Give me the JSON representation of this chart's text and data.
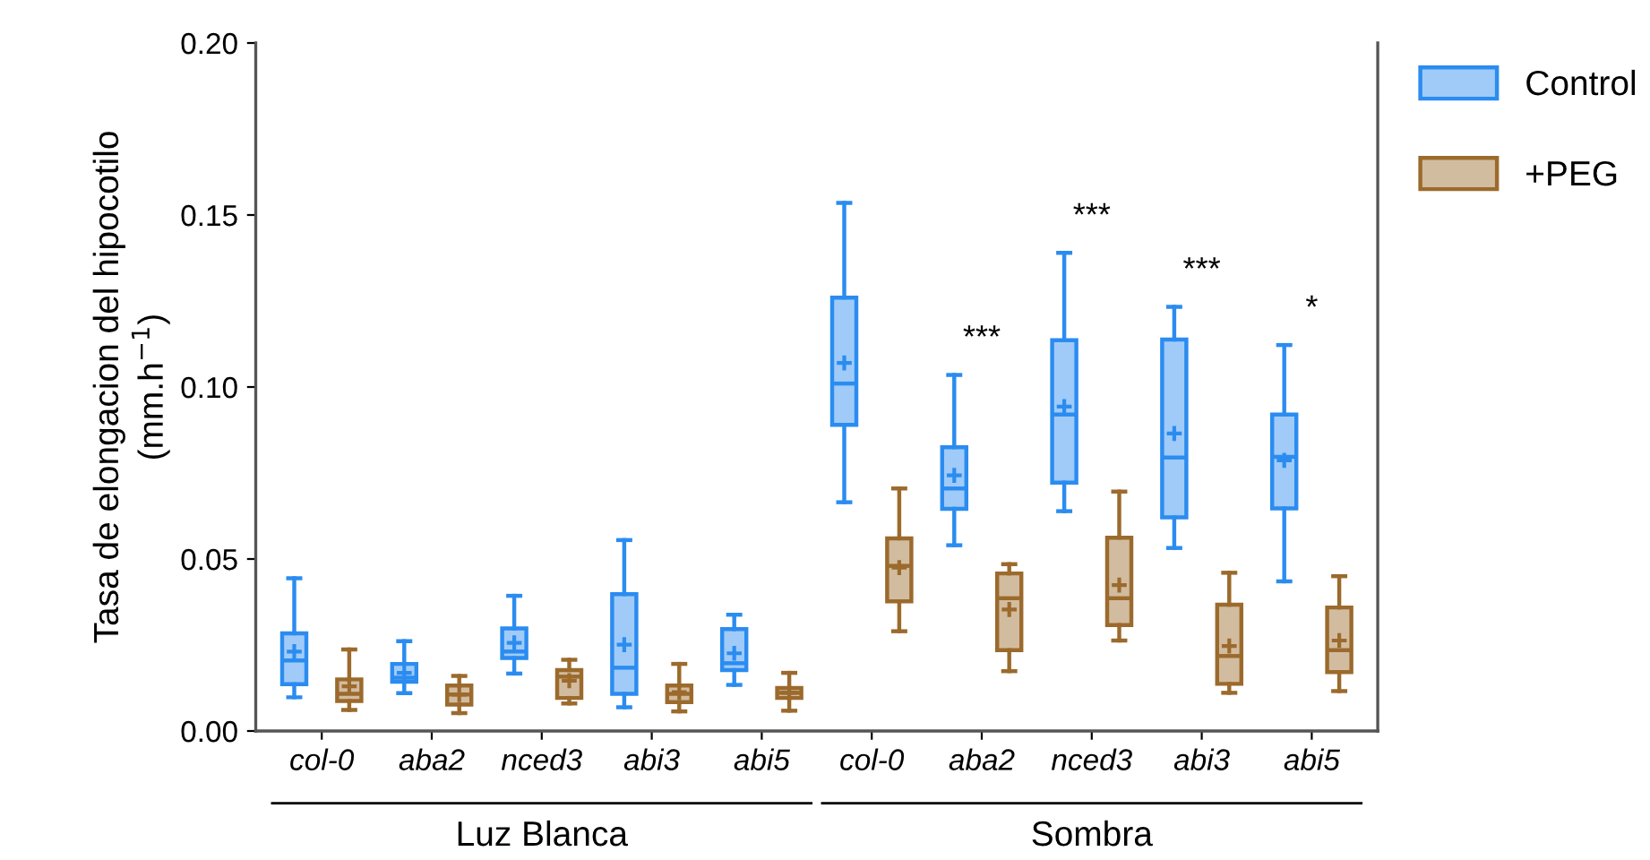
{
  "chart_data": {
    "type": "box",
    "ylabel": "Tasa de elongacion del hipocotilo\n(mm.h$^{−1}$)",
    "categories": [
      "col-0",
      "aba2",
      "nced3",
      "abi3",
      "abi5",
      "col-0",
      "aba2",
      "nced3",
      "abi3",
      "abi5"
    ],
    "ylim": [
      0,
      0.2
    ],
    "yticks": [
      {
        "value": 0,
        "label": "0.00"
      },
      {
        "value": 0.05,
        "label": "0.05"
      },
      {
        "value": 0.1,
        "label": "0.10"
      },
      {
        "value": 0.15,
        "label": "0.15"
      },
      {
        "value": 0.2,
        "label": "0.20"
      }
    ],
    "grid": false,
    "legend": "top right",
    "marker": "cross",
    "series": [
      {
        "name": "Control",
        "color": "#2b8cf0",
        "boxes": [
          {
            "low": 0.0098,
            "q1": 0.0136,
            "median": 0.0205,
            "q3": 0.0284,
            "high": 0.0444,
            "mean": 0.0231
          },
          {
            "low": 0.011,
            "q1": 0.0143,
            "median": 0.0155,
            "q3": 0.0195,
            "high": 0.0261,
            "mean": 0.0169
          },
          {
            "low": 0.0167,
            "q1": 0.0212,
            "median": 0.0231,
            "q3": 0.0298,
            "high": 0.0393,
            "mean": 0.0256
          },
          {
            "low": 0.0069,
            "q1": 0.0108,
            "median": 0.0184,
            "q3": 0.0398,
            "high": 0.0555,
            "mean": 0.0251
          },
          {
            "low": 0.0134,
            "q1": 0.0177,
            "median": 0.0197,
            "q3": 0.0296,
            "high": 0.0338,
            "mean": 0.0226
          },
          {
            "low": 0.0665,
            "q1": 0.089,
            "median": 0.101,
            "q3": 0.126,
            "high": 0.1535,
            "mean": 0.107
          },
          {
            "low": 0.054,
            "q1": 0.0646,
            "median": 0.0705,
            "q3": 0.0825,
            "high": 0.1035,
            "mean": 0.0743
          },
          {
            "low": 0.0639,
            "q1": 0.0722,
            "median": 0.092,
            "q3": 0.1136,
            "high": 0.139,
            "mean": 0.0943
          },
          {
            "low": 0.0532,
            "q1": 0.0621,
            "median": 0.0795,
            "q3": 0.1138,
            "high": 0.1233,
            "mean": 0.0865
          },
          {
            "low": 0.0435,
            "q1": 0.0647,
            "median": 0.0797,
            "q3": 0.092,
            "high": 0.1122,
            "mean": 0.0787
          }
        ]
      },
      {
        "name": "+PEG",
        "color": "#9b6a2c",
        "boxes": [
          {
            "low": 0.0061,
            "q1": 0.0087,
            "median": 0.0108,
            "q3": 0.015,
            "high": 0.0237,
            "mean": 0.013
          },
          {
            "low": 0.0052,
            "q1": 0.0077,
            "median": 0.0106,
            "q3": 0.0132,
            "high": 0.016,
            "mean": 0.0106
          },
          {
            "low": 0.008,
            "q1": 0.0096,
            "median": 0.0158,
            "q3": 0.0177,
            "high": 0.0207,
            "mean": 0.0146
          },
          {
            "low": 0.0057,
            "q1": 0.0084,
            "median": 0.0108,
            "q3": 0.0132,
            "high": 0.0195,
            "mean": 0.0113
          },
          {
            "low": 0.0059,
            "q1": 0.0096,
            "median": 0.0111,
            "q3": 0.0125,
            "high": 0.0169,
            "mean": 0.0111
          },
          {
            "low": 0.029,
            "q1": 0.0377,
            "median": 0.048,
            "q3": 0.056,
            "high": 0.0705,
            "mean": 0.0475
          },
          {
            "low": 0.0174,
            "q1": 0.0235,
            "median": 0.0386,
            "q3": 0.0458,
            "high": 0.0485,
            "mean": 0.0353
          },
          {
            "low": 0.0263,
            "q1": 0.0308,
            "median": 0.0386,
            "q3": 0.0562,
            "high": 0.0696,
            "mean": 0.0424
          },
          {
            "low": 0.0111,
            "q1": 0.0137,
            "median": 0.0218,
            "q3": 0.0367,
            "high": 0.046,
            "mean": 0.0247
          },
          {
            "low": 0.0116,
            "q1": 0.0171,
            "median": 0.0235,
            "q3": 0.0359,
            "high": 0.045,
            "mean": 0.0263
          }
        ]
      }
    ],
    "annotations": [
      "Luz Blanca",
      "Sombra",
      "***",
      "***",
      "***",
      "*"
    ]
  }
}
